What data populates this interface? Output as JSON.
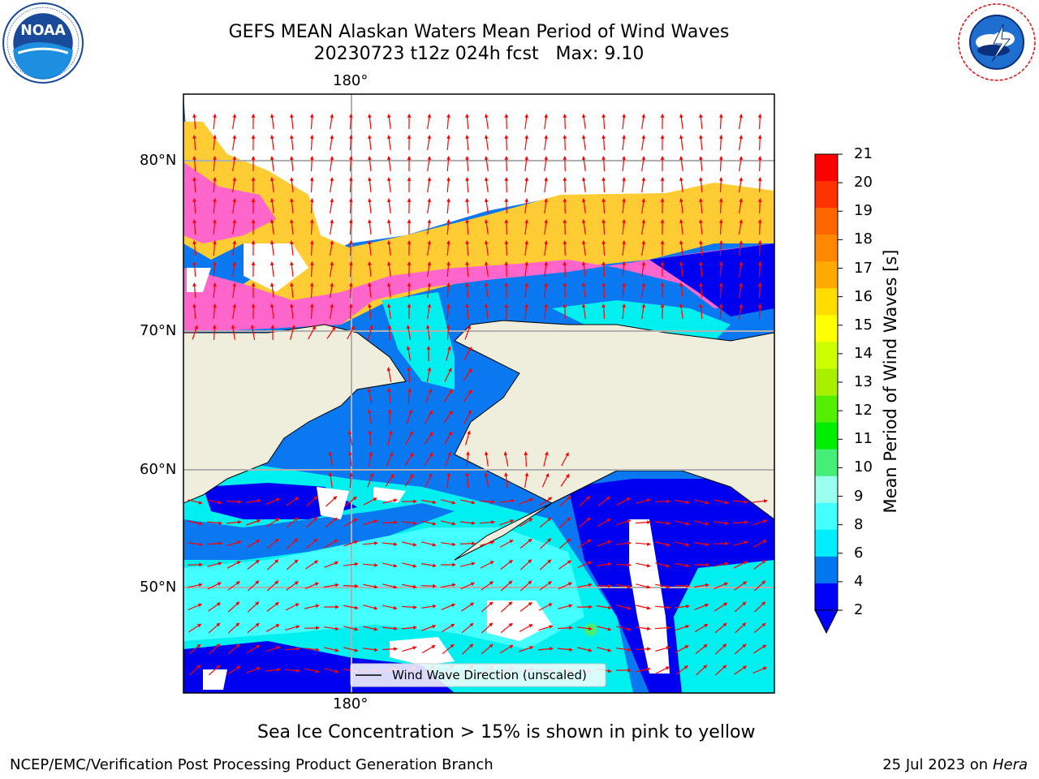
{
  "header": {
    "title_line1": "GEFS MEAN Alaskan Waters Mean Period of Wind Waves",
    "title_line2": "20230723 t12z 024h fcst   Max: 9.10"
  },
  "logos": {
    "left": {
      "icon": "noaa-logo",
      "text": "NOAA",
      "ring_text": "NATIONAL OCEANIC AND ATMOSPHERIC ADMINISTRATION · U.S. DEPARTMENT OF COMMERCE"
    },
    "right": {
      "icon": "nws-logo",
      "ring_text": "NATIONAL WEATHER SERVICE"
    }
  },
  "map": {
    "lon_label_top": "180°",
    "lon_label_bottom": "180°",
    "lat_labels": [
      "80°N",
      "70°N",
      "60°N",
      "50°N"
    ],
    "legend_text": "Wind Wave Direction (unscaled)",
    "colors": {
      "land": "#efeedc",
      "ocean_low": "#0000f0",
      "ocean_mid": "#0a78f0",
      "ocean_high": "#00f0f0",
      "ice_pink": "#ff66cc",
      "ice_yellow": "#ffcc33",
      "arrow": "#ff0000"
    }
  },
  "colorbar": {
    "label": "Mean Period of Wind Waves [s]",
    "ticks": [
      "21",
      "20",
      "19",
      "18",
      "17",
      "16",
      "15",
      "14",
      "13",
      "12",
      "11",
      "10",
      "9",
      "8",
      "6",
      "4",
      "2"
    ],
    "colors": [
      "#ff0000",
      "#ff3300",
      "#ff6600",
      "#ff8800",
      "#ffaa00",
      "#ffdd00",
      "#ffff00",
      "#ccff00",
      "#aaee00",
      "#55ee00",
      "#00ee00",
      "#44ee77",
      "#99ffee",
      "#44ffff",
      "#00eeff",
      "#0077ee",
      "#0000ff"
    ]
  },
  "caption": "Sea Ice Concentration > 15% is shown in pink to yellow",
  "footer": {
    "left": "NCEP/EMC/Verification Post Processing Product Generation Branch",
    "right_prefix": "25 Jul 2023 on ",
    "right_machine": "Hera"
  }
}
